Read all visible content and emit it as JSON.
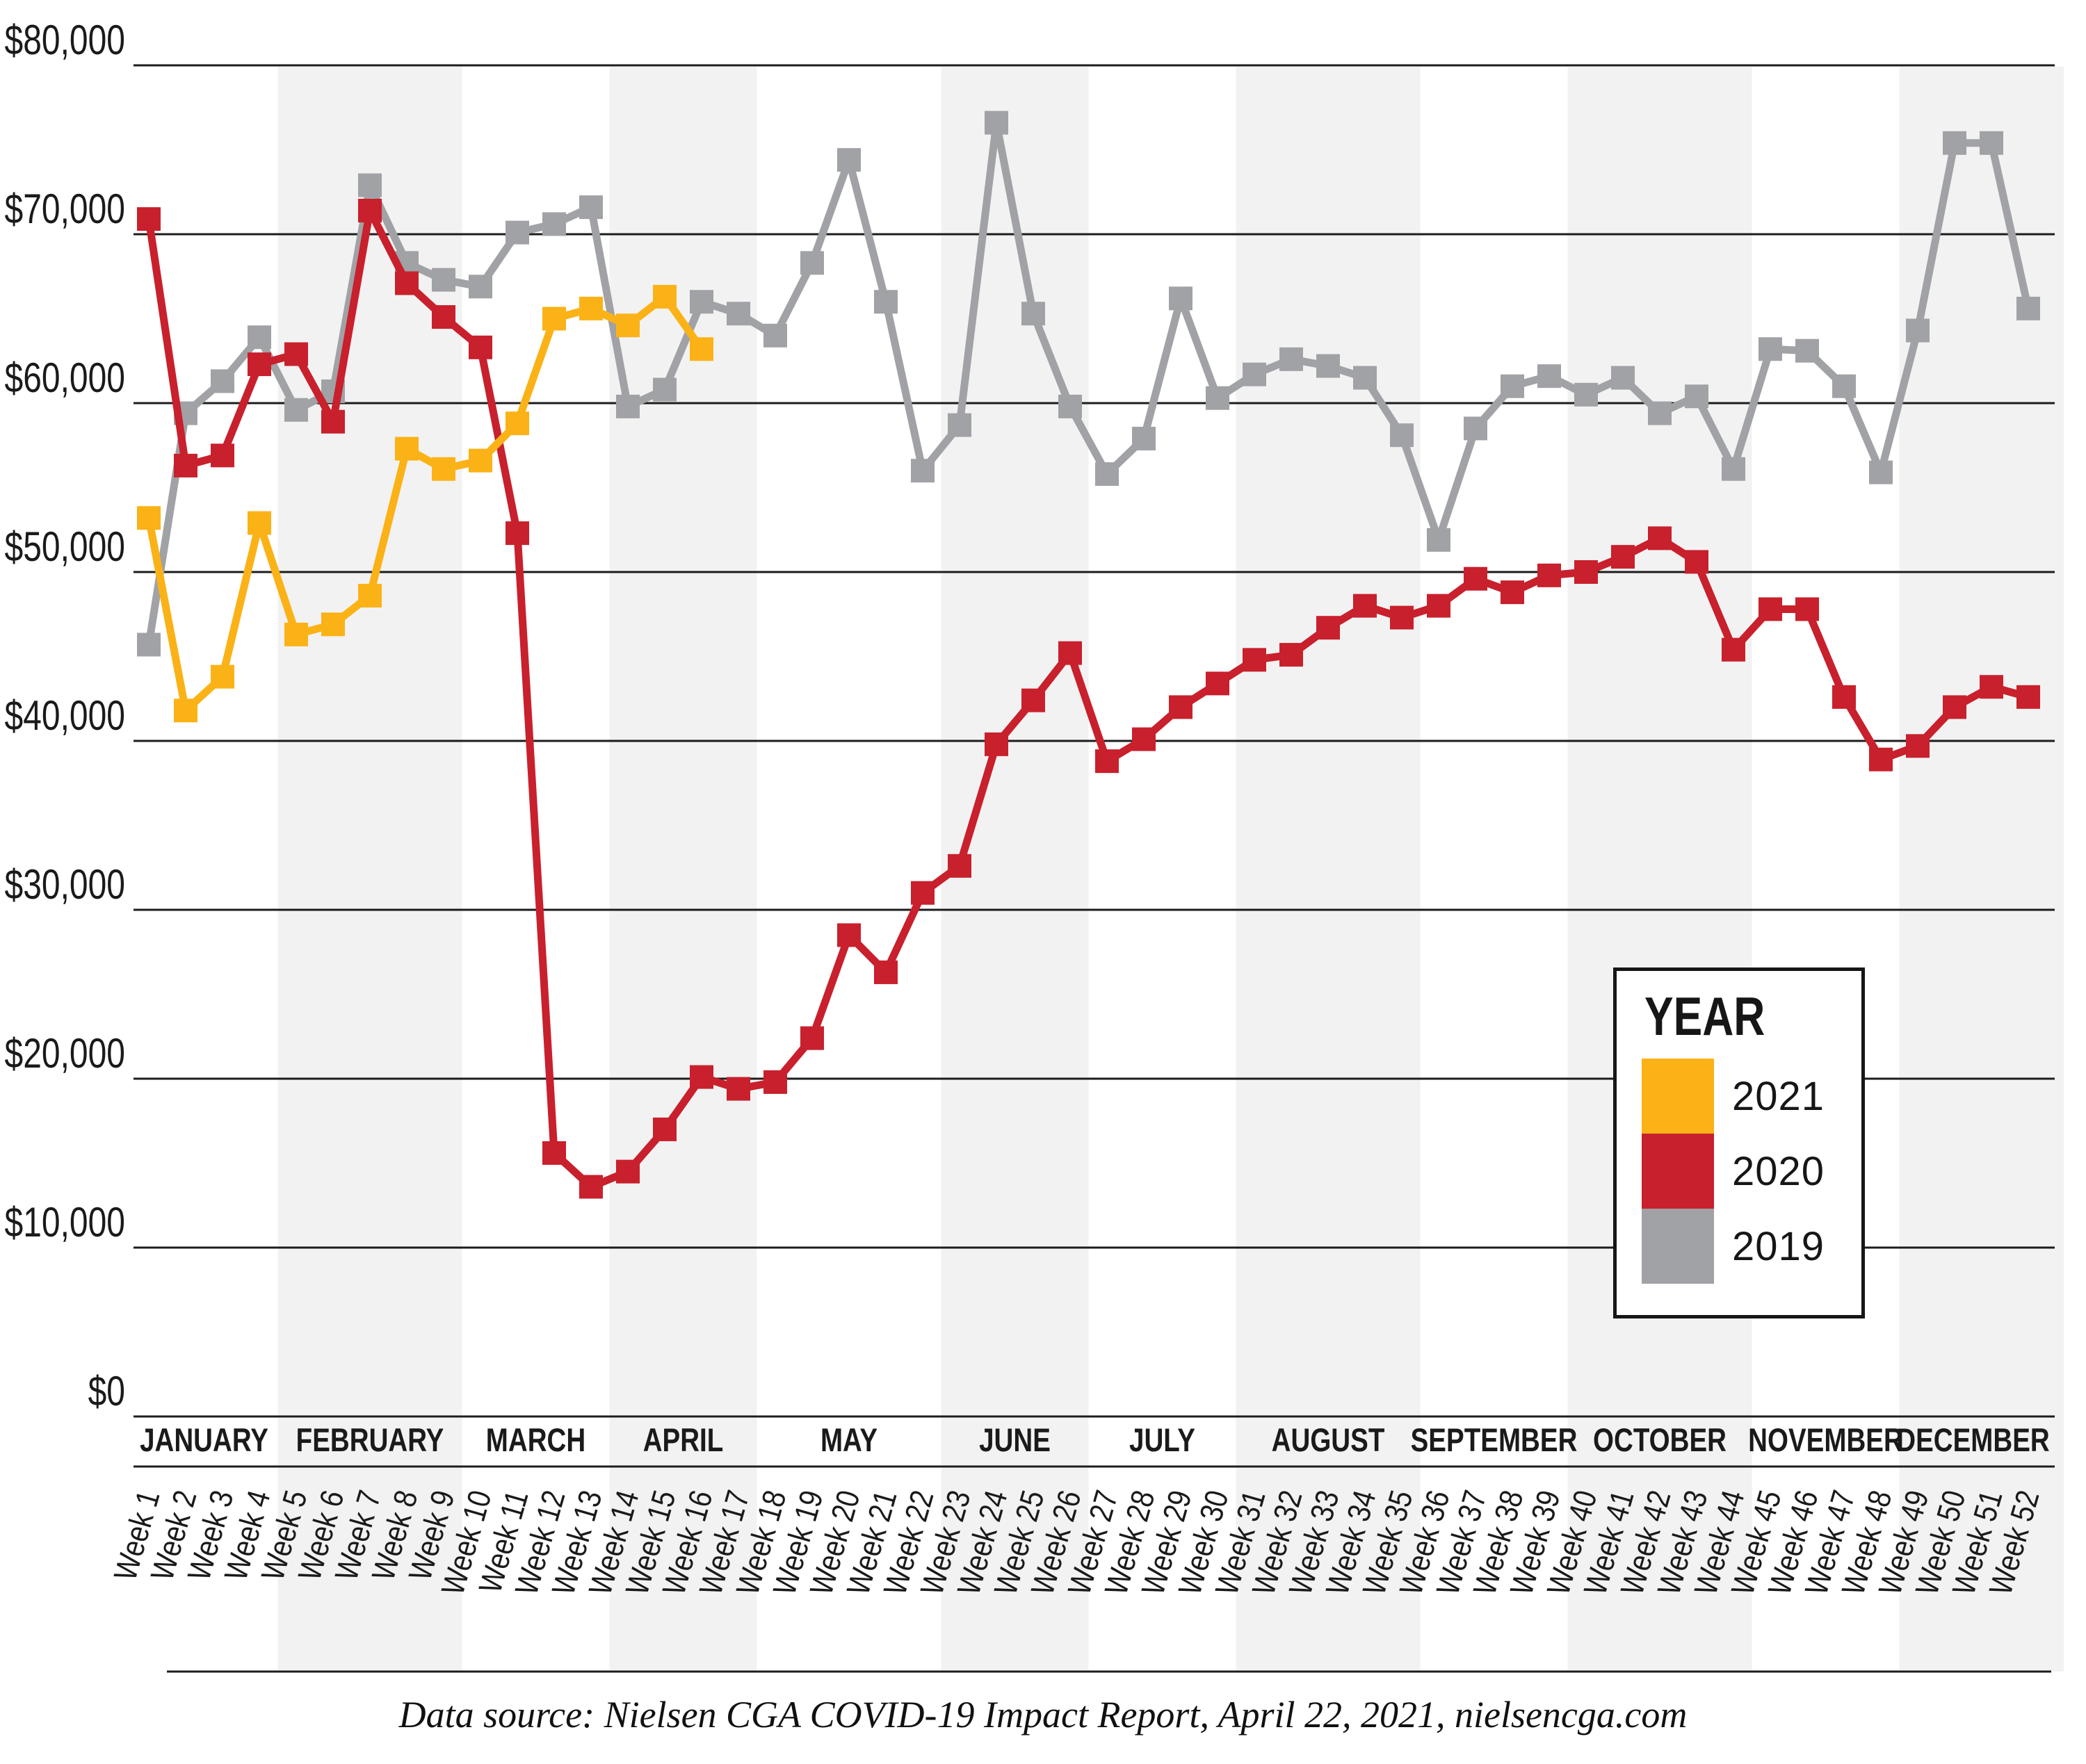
{
  "legend": {
    "title": "YEAR",
    "items": [
      {
        "label": "2021",
        "color": "#FBB217"
      },
      {
        "label": "2020",
        "color": "#C8202C"
      },
      {
        "label": "2019",
        "color": "#A0A2A5"
      }
    ]
  },
  "footer": {
    "text": "Data source: Nielsen CGA COVID-19 Impact Report, April 22, 2021, nielsencga.com"
  },
  "chart_data": {
    "type": "line",
    "title": "",
    "xlabel": "",
    "ylabel": "",
    "ylim": [
      0,
      80000
    ],
    "grid": "horizontal",
    "legend_position": "right-middle",
    "y_ticks": [
      "$80,000",
      "$70,000",
      "$60,000",
      "$50,000",
      "$40,000",
      "$30,000",
      "$20,000",
      "$10,000",
      "$0"
    ],
    "categories": [
      "Week 1",
      "Week 2",
      "Week 3",
      "Week 4",
      "Week 5",
      "Week 6",
      "Week 7",
      "Week 8",
      "Week 9",
      "Week 10",
      "Week 11",
      "Week 12",
      "Week 13",
      "Week 14",
      "Week 15",
      "Week 16",
      "Week 17",
      "Week 18",
      "Week 19",
      "Week 20",
      "Week 21",
      "Week 22",
      "Week 23",
      "Week 24",
      "Week 25",
      "Week 26",
      "Week 27",
      "Week 28",
      "Week 29",
      "Week 30",
      "Week 31",
      "Week 32",
      "Week 33",
      "Week 34",
      "Week 35",
      "Week 36",
      "Week 37",
      "Week 38",
      "Week 39",
      "Week 40",
      "Week 41",
      "Week 42",
      "Week 43",
      "Week 44",
      "Week 45",
      "Week 46",
      "Week 47",
      "Week 48",
      "Week 49",
      "Week 50",
      "Week 51",
      "Week 52"
    ],
    "months": [
      {
        "label": "JANUARY",
        "weeks": [
          1,
          4
        ],
        "shaded": false
      },
      {
        "label": "FEBRUARY",
        "weeks": [
          5,
          9
        ],
        "shaded": true
      },
      {
        "label": "MARCH",
        "weeks": [
          10,
          13
        ],
        "shaded": false
      },
      {
        "label": "APRIL",
        "weeks": [
          14,
          17
        ],
        "shaded": true
      },
      {
        "label": "MAY",
        "weeks": [
          18,
          22
        ],
        "shaded": false
      },
      {
        "label": "JUNE",
        "weeks": [
          23,
          26
        ],
        "shaded": true
      },
      {
        "label": "JULY",
        "weeks": [
          27,
          30
        ],
        "shaded": false
      },
      {
        "label": "AUGUST",
        "weeks": [
          31,
          35
        ],
        "shaded": true
      },
      {
        "label": "SEPTEMBER",
        "weeks": [
          36,
          39
        ],
        "shaded": false
      },
      {
        "label": "OCTOBER",
        "weeks": [
          40,
          44
        ],
        "shaded": true
      },
      {
        "label": "NOVEMBER",
        "weeks": [
          45,
          48
        ],
        "shaded": false
      },
      {
        "label": "DECEMBER",
        "weeks": [
          49,
          52
        ],
        "shaded": true
      }
    ],
    "series": [
      {
        "name": "2021",
        "color": "#FBB217",
        "values": [
          53200,
          41800,
          43800,
          52900,
          46300,
          46900,
          48600,
          57300,
          56100,
          56600,
          58800,
          65000,
          65600,
          64600,
          66300,
          63200
        ]
      },
      {
        "name": "2020",
        "color": "#C8202C",
        "values": [
          70900,
          56300,
          56900,
          62300,
          62900,
          58900,
          71400,
          67100,
          65100,
          63300,
          52300,
          15600,
          13600,
          14500,
          17000,
          20100,
          19400,
          19800,
          22400,
          28500,
          26300,
          31000,
          32600,
          39800,
          42400,
          45200,
          38800,
          40100,
          42000,
          43400,
          44800,
          45100,
          46700,
          48000,
          47300,
          48000,
          49600,
          48800,
          49800,
          50000,
          50900,
          52000,
          50600,
          45400,
          47800,
          47800,
          42600,
          38900,
          39700,
          42000,
          43200,
          42600
        ]
      },
      {
        "name": "2019",
        "color": "#A0A2A5",
        "values": [
          45700,
          59400,
          61300,
          63900,
          59600,
          60700,
          72900,
          68300,
          67300,
          66900,
          70100,
          70600,
          71600,
          59800,
          60800,
          66000,
          65300,
          64000,
          68300,
          74400,
          66000,
          56000,
          58700,
          76600,
          65300,
          59800,
          55800,
          57900,
          66200,
          60300,
          61700,
          62600,
          62200,
          61500,
          58100,
          51900,
          58500,
          61000,
          61600,
          60500,
          61500,
          59400,
          60400,
          56100,
          63200,
          63100,
          61000,
          55900,
          64300,
          75400,
          75400,
          65600
        ]
      }
    ],
    "style": {
      "band_color": "#F2F2F2",
      "gridline_color": "#1C1C1C",
      "text_color": "#1A1A1A",
      "marker_size": 34,
      "line_width": 11
    }
  }
}
